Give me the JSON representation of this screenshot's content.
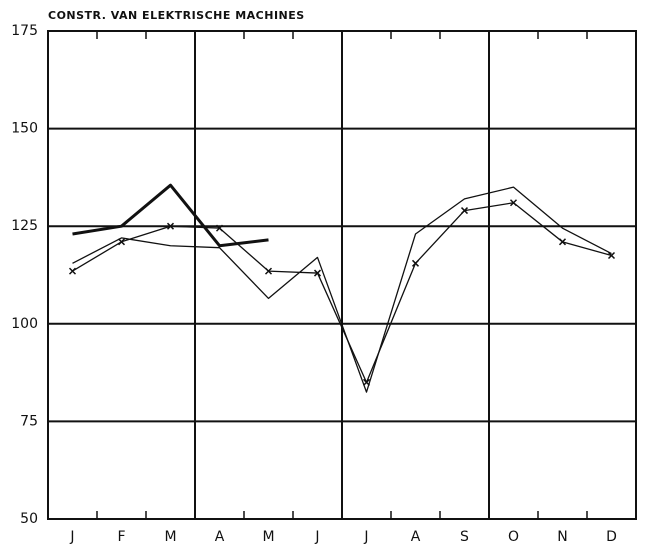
{
  "chart_data": {
    "type": "line",
    "title": "CONSTR. VAN ELEKTRISCHE MACHINES",
    "categories": [
      "J",
      "F",
      "M",
      "A",
      "M",
      "J",
      "J",
      "A",
      "S",
      "O",
      "N",
      "D"
    ],
    "series": [
      {
        "color": "#111111",
        "marker": "x",
        "width": 1.3,
        "values": [
          113.5,
          121,
          125,
          124.5,
          113.5,
          113,
          85,
          115.5,
          129,
          131,
          121,
          117.5
        ]
      },
      {
        "color": "#111111",
        "width": 1.3,
        "values": [
          115.5,
          122,
          120,
          119.5,
          106.5,
          117,
          82.5,
          123,
          132,
          135,
          124.5,
          118
        ]
      },
      {
        "color": "#111111",
        "width": 3,
        "values": [
          123,
          125,
          135.5,
          120,
          121.5,
          null,
          null,
          null,
          null,
          null,
          null,
          null
        ]
      }
    ],
    "ylim": [
      50,
      175
    ],
    "yticks": [
      50,
      75,
      100,
      125,
      150,
      175
    ],
    "grid": true
  }
}
